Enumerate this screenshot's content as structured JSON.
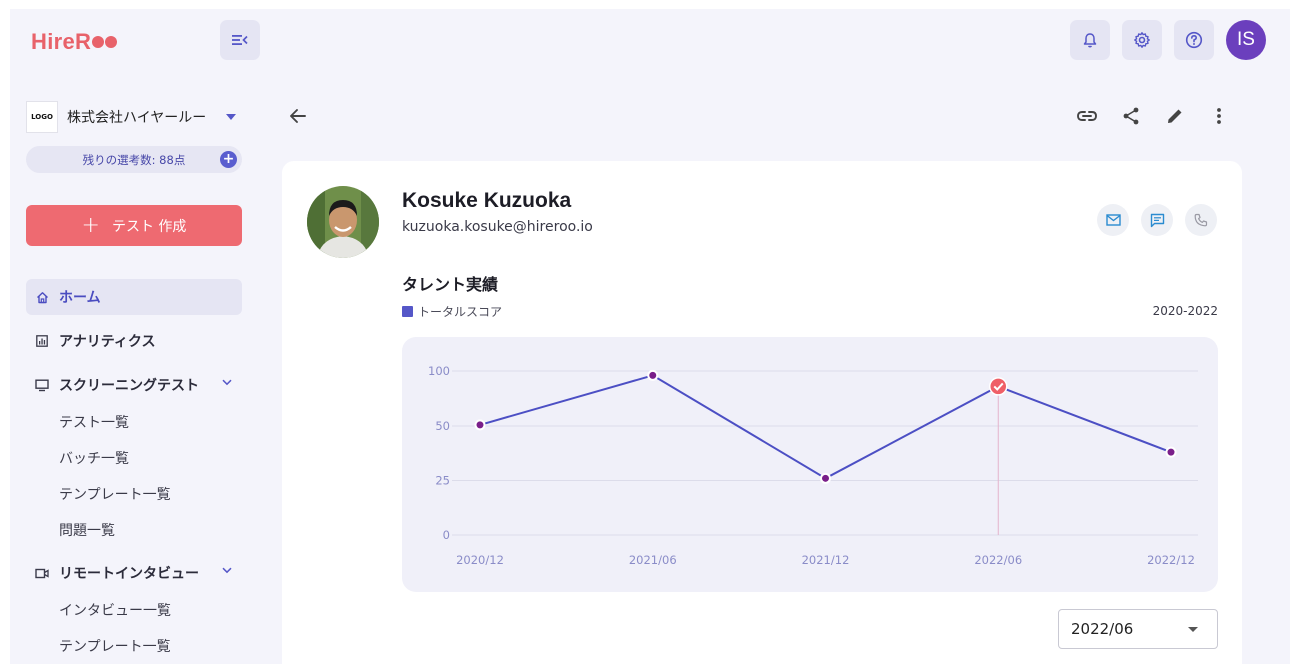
{
  "app": {
    "logo_text": "HireR",
    "brand_color": "#e8626a",
    "accent_color": "#5557c8"
  },
  "header": {
    "user_initials": "IS"
  },
  "sidebar": {
    "org_logo_text": "LOGO",
    "org_name": "株式会社ハイヤールー",
    "remaining": "残りの選考数: 88点",
    "create_button": "テスト 作成",
    "items": [
      {
        "label": "ホーム",
        "icon": "home-icon",
        "active": true
      },
      {
        "label": "アナリティクス",
        "icon": "analytics-icon"
      },
      {
        "label": "スクリーニングテスト",
        "icon": "monitor-icon",
        "expanded": true,
        "children": [
          "テスト一覧",
          "バッチ一覧",
          "テンプレート一覧",
          "問題一覧"
        ]
      },
      {
        "label": "リモートインタビュー",
        "icon": "video-icon",
        "expanded": true,
        "children": [
          "インタビュー一覧",
          "テンプレート一覧"
        ]
      }
    ]
  },
  "profile": {
    "name": "Kosuke Kuzuoka",
    "email": "kuzuoka.kosuke@hireroo.io"
  },
  "talent": {
    "title": "タレント実績",
    "legend": "トータルスコア",
    "period": "2020-2022",
    "selected_period": "2022/06"
  },
  "chart_data": {
    "type": "line",
    "categories": [
      "2020/12",
      "2021/06",
      "2021/12",
      "2022/06",
      "2022/12"
    ],
    "series": [
      {
        "name": "トータルスコア",
        "values": [
          51,
          96,
          26,
          86,
          38
        ]
      }
    ],
    "y_ticks": [
      0,
      25,
      50,
      100
    ],
    "highlight_index": 3,
    "grid": true,
    "line_color": "#4c4fc4",
    "point_color": "#7a1f8a",
    "highlight_color": "#ef5f67"
  }
}
